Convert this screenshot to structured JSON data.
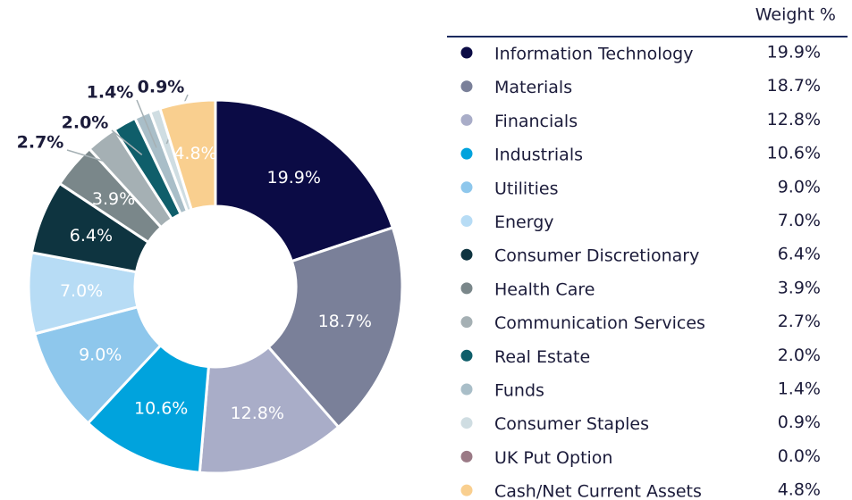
{
  "chart_data": {
    "type": "donut",
    "legend_header": "Weight %",
    "categories": [
      "Information Technology",
      "Materials",
      "Financials",
      "Industrials",
      "Utilities",
      "Energy",
      "Consumer Discretionary",
      "Health Care",
      "Communication Services",
      "Real Estate",
      "Funds",
      "Consumer Staples",
      "UK Put Option",
      "Cash/Net Current Assets"
    ],
    "values": [
      19.9,
      18.7,
      12.8,
      10.6,
      9.0,
      7.0,
      6.4,
      3.9,
      2.7,
      2.0,
      1.4,
      0.9,
      0.0,
      4.8
    ],
    "value_labels": [
      "19.9%",
      "18.7%",
      "12.8%",
      "10.6%",
      "9.0%",
      "7.0%",
      "6.4%",
      "3.9%",
      "2.7%",
      "2.0%",
      "1.4%",
      "0.9%",
      "0.0%",
      "4.8%"
    ],
    "colors": [
      "#0b0b45",
      "#7a8099",
      "#a9adc8",
      "#00a3dd",
      "#8ec7ec",
      "#b7dcf5",
      "#0e3440",
      "#7a878a",
      "#a5b0b4",
      "#0f5e6a",
      "#a9bec8",
      "#cfdde2",
      "#9b7a86",
      "#f9cf8f"
    ]
  }
}
